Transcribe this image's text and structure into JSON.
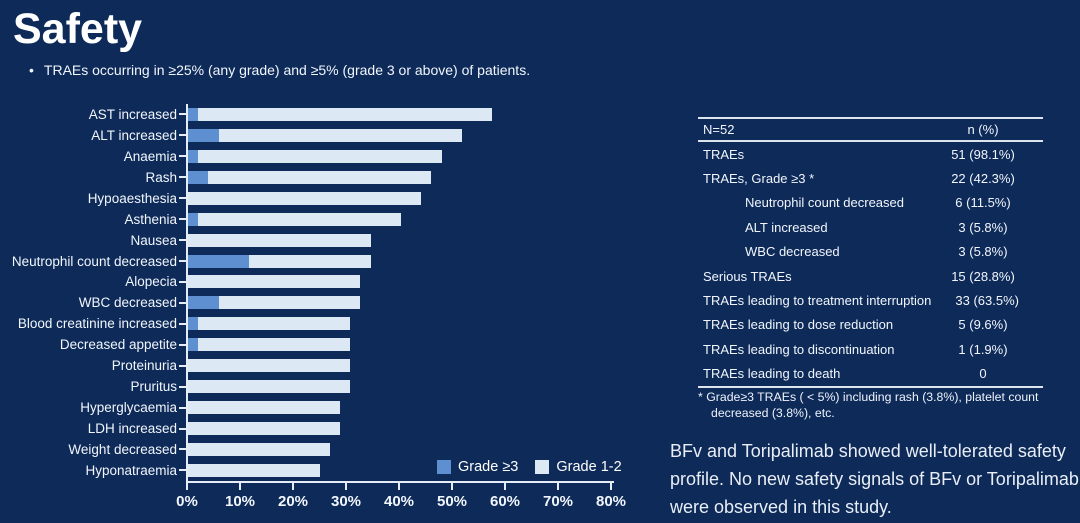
{
  "title": "Safety",
  "bullet": "TRAEs occurring in ≥25% (any grade) and ≥5% (grade 3 or above) of patients.",
  "colors": {
    "background": "#0d2a59",
    "grade3_blue": "#5e8fd0",
    "grade12_light": "#dde8f5",
    "axis_white": "#e6edf7"
  },
  "chart_data": {
    "type": "bar",
    "orientation": "horizontal",
    "stacked": true,
    "grid": false,
    "legend_position": "bottom-right",
    "xlim": [
      0,
      80
    ],
    "xticks": [
      "0%",
      "10%",
      "20%",
      "30%",
      "40%",
      "50%",
      "60%",
      "70%",
      "80%"
    ],
    "categories": [
      "AST increased",
      "ALT increased",
      "Anaemia",
      "Rash",
      "Hypoaesthesia",
      "Asthenia",
      "Nausea",
      "Neutrophil count decreased",
      "Alopecia",
      "WBC decreased",
      "Blood creatinine increased",
      "Decreased appetite",
      "Proteinuria",
      "Pruritus",
      "Hyperglycaemia",
      "LDH increased",
      "Weight decreased",
      "Hyponatraemia"
    ],
    "series": [
      {
        "name": "Grade ≥3",
        "color": "#5e8fd0",
        "values": [
          1.9,
          5.8,
          1.9,
          3.8,
          0,
          1.9,
          0,
          11.5,
          0,
          5.8,
          1.9,
          1.9,
          0,
          0,
          0,
          0,
          0,
          0
        ]
      },
      {
        "name": "Grade 1-2",
        "color": "#dde8f5",
        "values": [
          55.8,
          46.2,
          46.2,
          42.3,
          44.2,
          38.5,
          34.6,
          23.1,
          32.7,
          26.9,
          28.8,
          28.8,
          30.8,
          30.8,
          28.8,
          28.8,
          26.9,
          25.0
        ]
      }
    ]
  },
  "table": {
    "header": {
      "col1": "N=52",
      "col2": "n (%)"
    },
    "rows": [
      {
        "label": "TRAEs",
        "value": "51 (98.1%)",
        "indent": false
      },
      {
        "label": "TRAEs, Grade ≥3 *",
        "value": "22 (42.3%)",
        "indent": false
      },
      {
        "label": "Neutrophil count decreased",
        "value": "6 (11.5%)",
        "indent": true
      },
      {
        "label": "ALT increased",
        "value": "3 (5.8%)",
        "indent": true
      },
      {
        "label": "WBC decreased",
        "value": "3 (5.8%)",
        "indent": true
      },
      {
        "label": "Serious TRAEs",
        "value": "15 (28.8%)",
        "indent": false
      },
      {
        "label": "TRAEs leading to treatment interruption",
        "value": "33 (63.5%)",
        "indent": false
      },
      {
        "label": "TRAEs leading to dose reduction",
        "value": "5 (9.6%)",
        "indent": false
      },
      {
        "label": "TRAEs leading to discontinuation",
        "value": "1 (1.9%)",
        "indent": false
      },
      {
        "label": "TRAEs leading to death",
        "value": "0",
        "indent": false
      }
    ],
    "footnote": "* Grade≥3 TRAEs ( < 5%) including rash (3.8%), platelet count decreased (3.8%), etc."
  },
  "conclusion": "BFv and Toripalimab showed well-tolerated safety profile. No new safety signals of BFv or Toripalimab were observed in this study."
}
